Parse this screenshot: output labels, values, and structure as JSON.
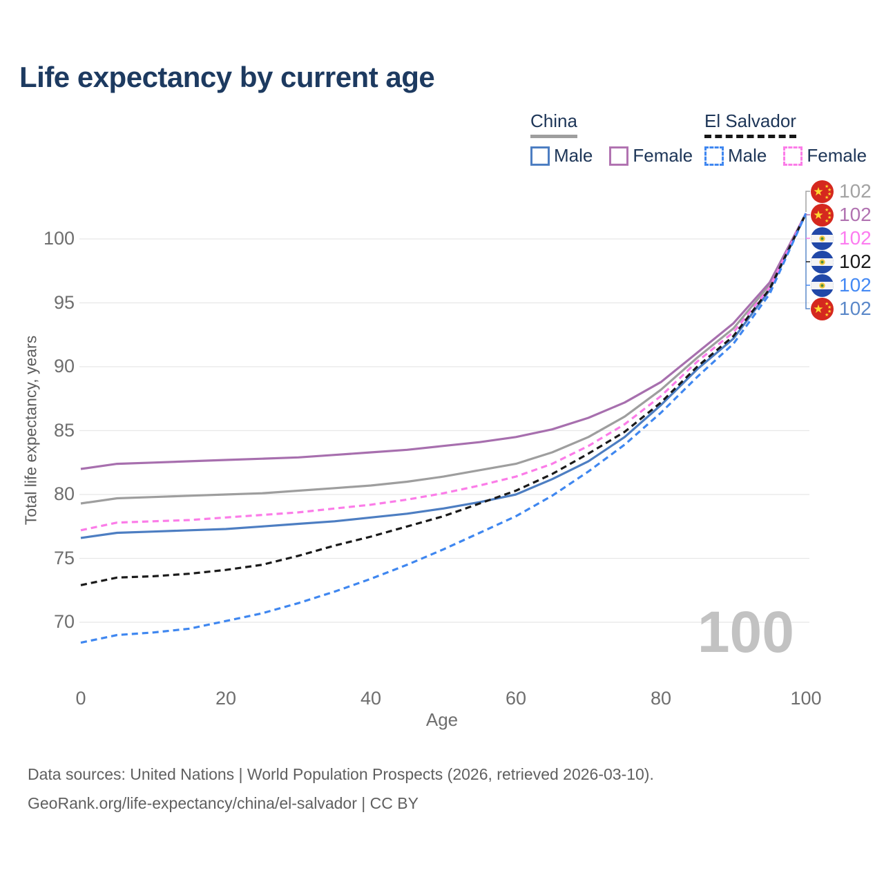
{
  "title": "Life expectancy by current age",
  "legend": {
    "groups": [
      {
        "id": "china",
        "label": "China",
        "line_color": "#9e9e9e",
        "dashed": false,
        "items": [
          {
            "id": "china-male",
            "label": "Male",
            "color": "#4d7ec2"
          },
          {
            "id": "china-female",
            "label": "Female",
            "color": "#b173b1"
          }
        ]
      },
      {
        "id": "el-salvador",
        "label": "El Salvador",
        "line_color": "#161616",
        "dashed": true,
        "items": [
          {
            "id": "el-salvador-male",
            "label": "Male",
            "color": "#3f87f0"
          },
          {
            "id": "el-salvador-female",
            "label": "Female",
            "color": "#fb7ce8"
          }
        ]
      }
    ]
  },
  "chart_data": {
    "type": "line",
    "title": "Life expectancy by current age",
    "xlabel": "Age",
    "ylabel": "Total life expectancy, years",
    "x": [
      0,
      5,
      10,
      15,
      20,
      25,
      30,
      35,
      40,
      45,
      50,
      55,
      60,
      65,
      70,
      75,
      80,
      85,
      90,
      95,
      100
    ],
    "xticks": [
      0,
      20,
      40,
      60,
      80,
      100
    ],
    "yticks": [
      70,
      75,
      80,
      85,
      90,
      95,
      100
    ],
    "xlim": [
      0,
      100
    ],
    "ylim": [
      67,
      103
    ],
    "grid": "horizontal-only",
    "legend_position": "top-right",
    "series": [
      {
        "id": "china-both",
        "name": "China",
        "color": "#9e9e9e",
        "dashed": false,
        "end_value": 102,
        "values": [
          79.3,
          79.7,
          79.8,
          79.9,
          80.0,
          80.1,
          80.3,
          80.5,
          80.7,
          81.0,
          81.4,
          81.9,
          82.4,
          83.3,
          84.5,
          86.1,
          88.2,
          90.7,
          93.0,
          96.4,
          102
        ]
      },
      {
        "id": "china-female",
        "name": "China Female",
        "color": "#a76fae",
        "dashed": false,
        "end_value": 102,
        "values": [
          82.0,
          82.4,
          82.5,
          82.6,
          82.7,
          82.8,
          82.9,
          83.1,
          83.3,
          83.5,
          83.8,
          84.1,
          84.5,
          85.1,
          86.0,
          87.2,
          88.8,
          91.1,
          93.4,
          96.6,
          102
        ]
      },
      {
        "id": "china-male",
        "name": "China Male",
        "color": "#4d7ec2",
        "dashed": false,
        "end_value": 102,
        "values": [
          76.6,
          77.0,
          77.1,
          77.2,
          77.3,
          77.5,
          77.7,
          77.9,
          78.2,
          78.5,
          78.9,
          79.4,
          80.0,
          81.2,
          82.6,
          84.5,
          87.0,
          89.8,
          92.2,
          96.0,
          102
        ]
      },
      {
        "id": "el-salvador-female",
        "name": "El Salvador Female",
        "color": "#fb7ce8",
        "dashed": true,
        "end_value": 102,
        "values": [
          77.2,
          77.8,
          77.9,
          78.0,
          78.2,
          78.4,
          78.6,
          78.9,
          79.2,
          79.6,
          80.1,
          80.7,
          81.4,
          82.4,
          83.8,
          85.5,
          87.7,
          90.4,
          92.7,
          96.2,
          102
        ]
      },
      {
        "id": "el-salvador-both",
        "name": "El Salvador",
        "color": "#1a1a1a",
        "dashed": true,
        "end_value": 102,
        "values": [
          72.9,
          73.5,
          73.6,
          73.8,
          74.1,
          74.5,
          75.2,
          76.0,
          76.7,
          77.5,
          78.3,
          79.3,
          80.3,
          81.6,
          83.2,
          84.9,
          87.2,
          90.0,
          92.4,
          96.1,
          102
        ]
      },
      {
        "id": "el-salvador-male",
        "name": "El Salvador Male",
        "color": "#3f87f0",
        "dashed": true,
        "end_value": 102,
        "values": [
          68.4,
          69.0,
          69.2,
          69.5,
          70.1,
          70.7,
          71.5,
          72.4,
          73.4,
          74.5,
          75.7,
          77.0,
          78.3,
          79.9,
          81.8,
          83.9,
          86.4,
          89.2,
          91.8,
          95.7,
          102
        ]
      }
    ]
  },
  "end_labels": [
    {
      "series": "china-both",
      "flag": "china",
      "value": "102",
      "color": "#a3a3a3"
    },
    {
      "series": "china-female",
      "flag": "china",
      "value": "102",
      "color": "#b173b1"
    },
    {
      "series": "el-salvador-female",
      "flag": "el-salvador",
      "value": "102",
      "color": "#fc7cf0"
    },
    {
      "series": "el-salvador-both",
      "flag": "el-salvador",
      "value": "102",
      "color": "#1a1a1a"
    },
    {
      "series": "el-salvador-male",
      "flag": "el-salvador",
      "value": "102",
      "color": "#4489f4"
    },
    {
      "series": "china-male",
      "flag": "china",
      "value": "102",
      "color": "#5b88c9"
    }
  ],
  "watermark": "100",
  "footer": {
    "line1": "Data sources: United Nations | World Population Prospects (2026, retrieved 2026-03-10).",
    "line2": "GeoRank.org/life-expectancy/china/el-salvador | CC BY"
  }
}
